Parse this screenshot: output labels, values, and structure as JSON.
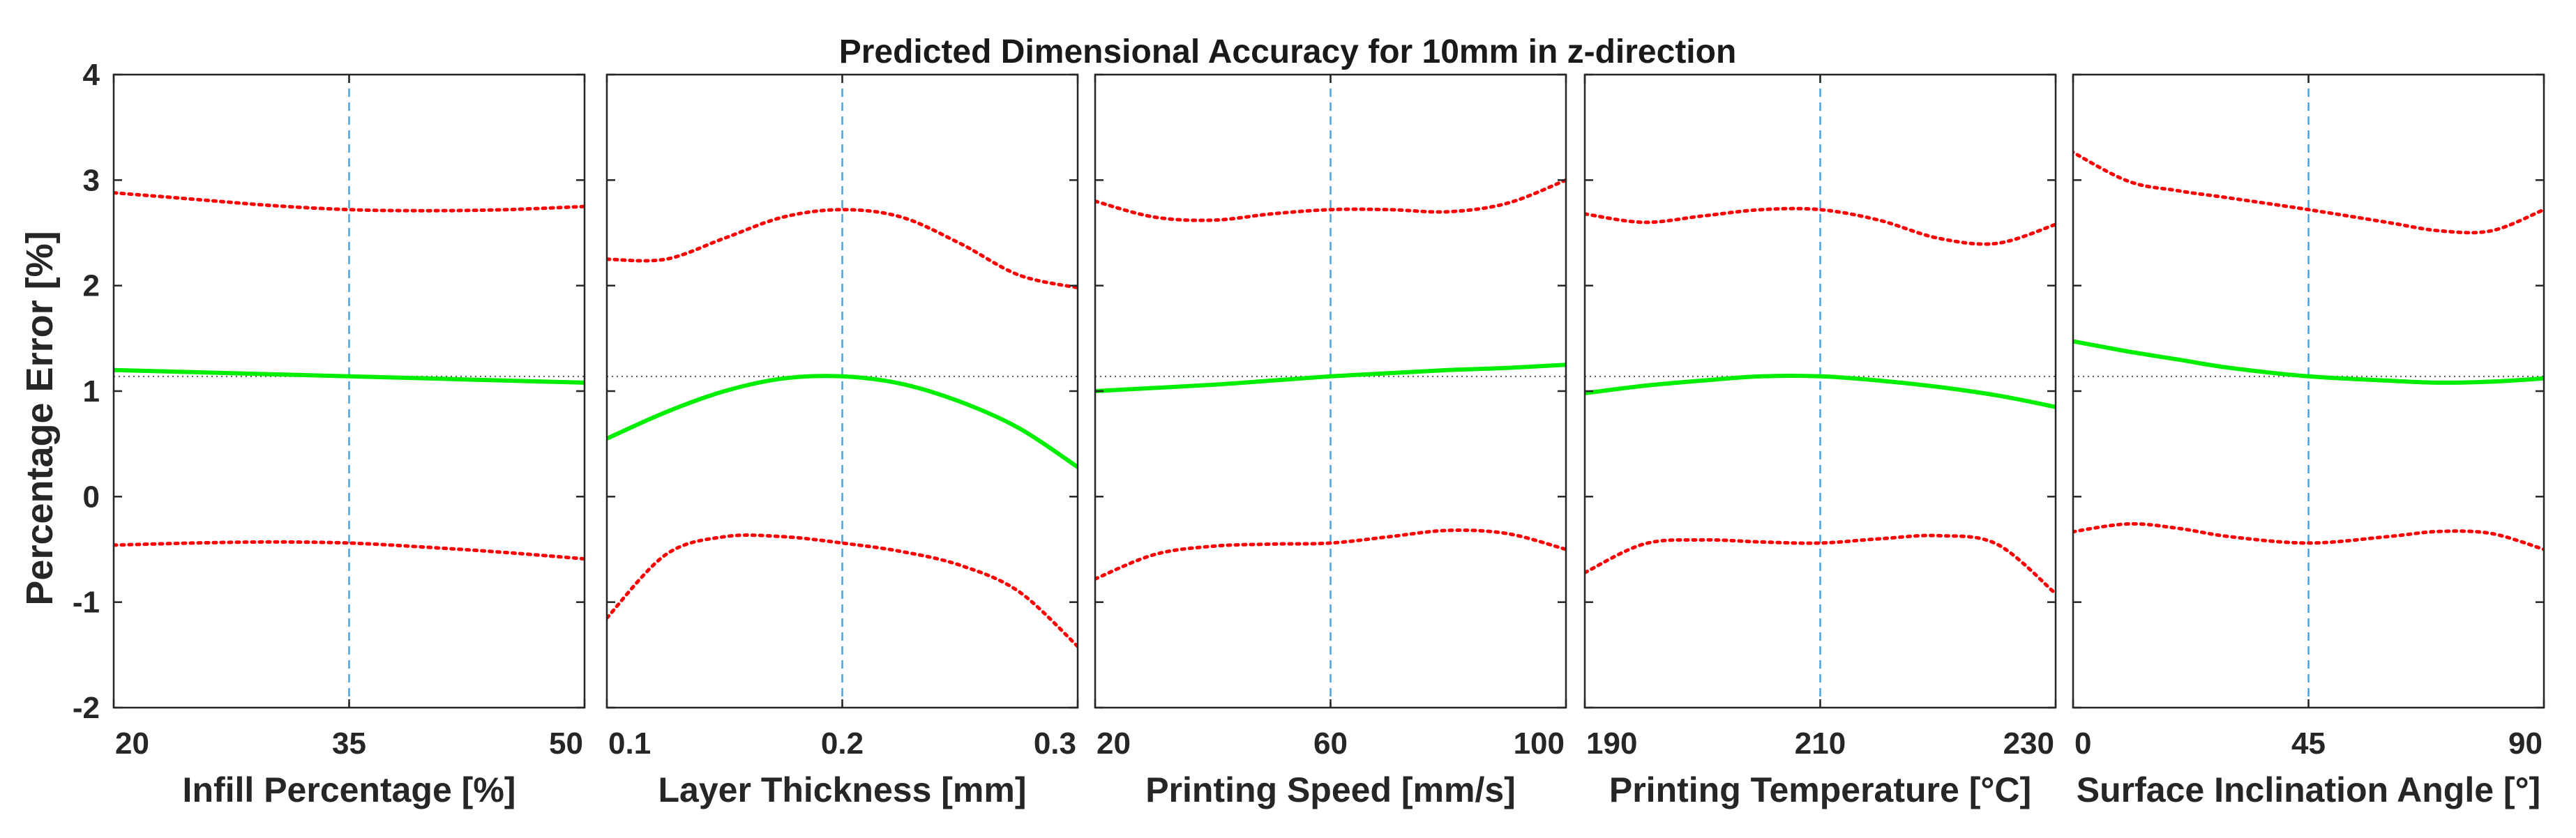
{
  "title": "Predicted Dimensional Accuracy for 10mm in z-direction",
  "ylabel": "Percentage Error [%]",
  "colors": {
    "prediction": "#00ee00",
    "bounds": "#ff0000",
    "crosshair": "#4da3d9",
    "reference": "#555555",
    "axis": "#262626"
  },
  "chart_data": [
    {
      "type": "line",
      "xlabel": "Infill Percentage [%]",
      "xlim": [
        20,
        50
      ],
      "ylim": [
        -2,
        4
      ],
      "xticks": [
        20,
        35,
        50
      ],
      "yticks": [
        -2,
        -1,
        0,
        1,
        2,
        3,
        4
      ],
      "current_x": 35,
      "reference_y": 1.14,
      "x": [
        20,
        25,
        30,
        35,
        40,
        45,
        50
      ],
      "series": [
        {
          "values": [
            1.2,
            1.18,
            1.16,
            1.14,
            1.12,
            1.1,
            1.08
          ]
        },
        {
          "values": [
            2.88,
            2.82,
            2.76,
            2.72,
            2.71,
            2.72,
            2.75
          ]
        },
        {
          "values": [
            -0.46,
            -0.44,
            -0.43,
            -0.44,
            -0.48,
            -0.53,
            -0.59
          ]
        }
      ]
    },
    {
      "type": "line",
      "xlabel": "Layer Thickness [mm]",
      "xlim": [
        0.1,
        0.3
      ],
      "ylim": [
        -2,
        4
      ],
      "xticks": [
        0.1,
        0.2,
        0.3
      ],
      "current_x": 0.2,
      "reference_y": 1.14,
      "x": [
        0.1,
        0.125,
        0.15,
        0.175,
        0.2,
        0.225,
        0.25,
        0.275,
        0.3
      ],
      "series": [
        {
          "values": [
            0.55,
            0.8,
            1.0,
            1.12,
            1.14,
            1.07,
            0.9,
            0.65,
            0.28
          ]
        },
        {
          "values": [
            2.25,
            2.25,
            2.45,
            2.65,
            2.72,
            2.65,
            2.4,
            2.1,
            1.98
          ]
        },
        {
          "values": [
            -1.15,
            -0.55,
            -0.38,
            -0.38,
            -0.44,
            -0.52,
            -0.65,
            -0.9,
            -1.42
          ]
        }
      ]
    },
    {
      "type": "line",
      "xlabel": "Printing Speed [mm/s]",
      "xlim": [
        20,
        100
      ],
      "ylim": [
        -2,
        4
      ],
      "xticks": [
        20,
        60,
        100
      ],
      "current_x": 60,
      "reference_y": 1.14,
      "x": [
        20,
        30,
        40,
        50,
        60,
        70,
        80,
        90,
        100
      ],
      "series": [
        {
          "values": [
            1.0,
            1.03,
            1.06,
            1.1,
            1.14,
            1.17,
            1.2,
            1.22,
            1.25
          ]
        },
        {
          "values": [
            2.8,
            2.65,
            2.62,
            2.68,
            2.72,
            2.72,
            2.7,
            2.78,
            3.0
          ]
        },
        {
          "values": [
            -0.78,
            -0.55,
            -0.47,
            -0.45,
            -0.44,
            -0.38,
            -0.32,
            -0.35,
            -0.5
          ]
        }
      ]
    },
    {
      "type": "line",
      "xlabel": "Printing Temperature [°C]",
      "xlim": [
        190,
        230
      ],
      "ylim": [
        -2,
        4
      ],
      "xticks": [
        190,
        210,
        230
      ],
      "current_x": 210,
      "reference_y": 1.14,
      "x": [
        190,
        195,
        200,
        205,
        210,
        215,
        220,
        225,
        230
      ],
      "series": [
        {
          "values": [
            0.98,
            1.05,
            1.1,
            1.14,
            1.14,
            1.1,
            1.04,
            0.96,
            0.85
          ]
        },
        {
          "values": [
            2.68,
            2.6,
            2.66,
            2.72,
            2.72,
            2.62,
            2.45,
            2.4,
            2.58
          ]
        },
        {
          "values": [
            -0.72,
            -0.45,
            -0.41,
            -0.43,
            -0.44,
            -0.4,
            -0.37,
            -0.45,
            -0.92
          ]
        }
      ]
    },
    {
      "type": "line",
      "xlabel": "Surface Inclination Angle [°]",
      "xlim": [
        0,
        90
      ],
      "ylim": [
        -2,
        4
      ],
      "xticks": [
        0,
        45,
        90
      ],
      "current_x": 45,
      "reference_y": 1.14,
      "x": [
        -3,
        10,
        20,
        30,
        45,
        60,
        70,
        80,
        90
      ],
      "series": [
        {
          "values": [
            1.5,
            1.38,
            1.3,
            1.22,
            1.14,
            1.1,
            1.08,
            1.09,
            1.12
          ]
        },
        {
          "values": [
            3.35,
            3.0,
            2.9,
            2.83,
            2.72,
            2.6,
            2.52,
            2.52,
            2.72
          ]
        },
        {
          "values": [
            -0.36,
            -0.26,
            -0.3,
            -0.38,
            -0.44,
            -0.38,
            -0.33,
            -0.35,
            -0.5
          ]
        }
      ]
    }
  ]
}
